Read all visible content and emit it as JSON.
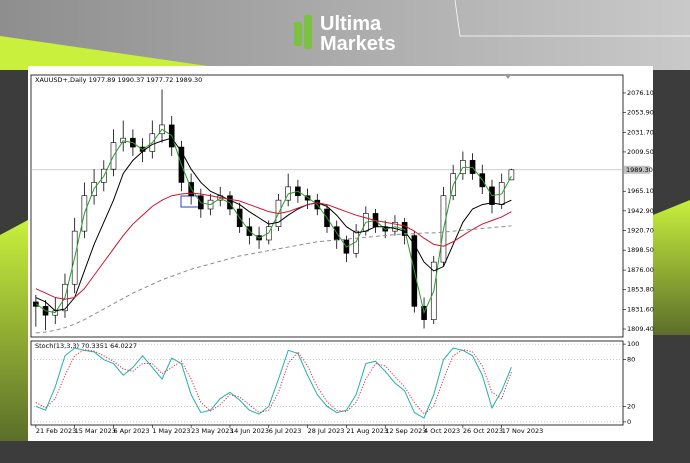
{
  "header": {
    "brand_line1": "Ultima",
    "brand_line2": "Markets"
  },
  "chart_data": [
    {
      "type": "candlestick",
      "title": "XAUUSD+,Daily 1977.89 1990.37 1977.72 1989.30",
      "x": [
        0,
        4,
        8,
        12,
        16,
        20,
        24,
        28,
        32,
        36,
        40,
        44,
        48,
        52,
        56,
        60,
        64,
        68,
        72,
        76,
        80,
        84,
        88,
        92,
        96,
        100,
        104,
        108,
        112,
        116,
        120,
        124,
        128,
        132,
        136,
        140,
        144,
        148,
        152,
        156,
        160,
        164,
        168,
        172,
        176,
        180,
        184,
        188,
        192,
        196
      ],
      "open": [
        1840,
        1835,
        1825,
        1830,
        1860,
        1920,
        1960,
        1975,
        1990,
        2020,
        2025,
        2015,
        2010,
        2030,
        2040,
        2015,
        1975,
        1960,
        1945,
        1955,
        1960,
        1945,
        1925,
        1915,
        1910,
        1925,
        1955,
        1970,
        1960,
        1955,
        1945,
        1925,
        1910,
        1895,
        1920,
        1940,
        1925,
        1920,
        1930,
        1915,
        1835,
        1820,
        1885,
        1960,
        1985,
        2000,
        1985,
        1970,
        1950,
        1977.89
      ],
      "high": [
        1848,
        1842,
        1845,
        1872,
        1935,
        1975,
        1990,
        2000,
        2035,
        2045,
        2035,
        2025,
        2045,
        2080,
        2050,
        2022,
        1985,
        1968,
        1962,
        1970,
        1965,
        1952,
        1935,
        1925,
        1932,
        1962,
        1985,
        1978,
        1968,
        1962,
        1950,
        1932,
        1915,
        1928,
        1948,
        1945,
        1932,
        1938,
        1935,
        1920,
        1845,
        1892,
        1970,
        1995,
        2010,
        2008,
        1995,
        1978,
        1985,
        1990.37
      ],
      "low": [
        1812,
        1808,
        1815,
        1822,
        1850,
        1912,
        1950,
        1965,
        1982,
        2010,
        2005,
        1998,
        2002,
        2020,
        2005,
        1965,
        1950,
        1935,
        1938,
        1948,
        1938,
        1918,
        1905,
        1900,
        1905,
        1920,
        1948,
        1952,
        1945,
        1938,
        1918,
        1900,
        1885,
        1890,
        1915,
        1918,
        1912,
        1915,
        1905,
        1828,
        1810,
        1815,
        1880,
        1955,
        1978,
        1978,
        1962,
        1940,
        1945,
        1977.72
      ],
      "close": [
        1835,
        1825,
        1830,
        1860,
        1920,
        1960,
        1975,
        1990,
        2020,
        2025,
        2015,
        2010,
        2030,
        2040,
        2015,
        1975,
        1960,
        1945,
        1955,
        1960,
        1945,
        1925,
        1915,
        1910,
        1925,
        1955,
        1970,
        1960,
        1955,
        1945,
        1925,
        1910,
        1895,
        1920,
        1940,
        1925,
        1920,
        1930,
        1915,
        1835,
        1820,
        1885,
        1960,
        1985,
        2000,
        1985,
        1970,
        1950,
        1975,
        1989.3
      ],
      "up_color": "#ffffff",
      "down_color": "#000000",
      "series": [
        {
          "color": "#2e9a2e",
          "style": "solid",
          "values": [
            1838,
            1830,
            1828,
            1845,
            1890,
            1940,
            1968,
            1982,
            2005,
            2022,
            2020,
            2012,
            2020,
            2035,
            2028,
            1995,
            1968,
            1952,
            1950,
            1957,
            1952,
            1935,
            1920,
            1912,
            1918,
            1940,
            1962,
            1965,
            1958,
            1950,
            1935,
            1918,
            1902,
            1908,
            1930,
            1932,
            1922,
            1925,
            1922,
            1875,
            1828,
            1852,
            1922,
            1972,
            1992,
            1992,
            1978,
            1960,
            1962,
            1982
          ]
        },
        {
          "color": "#000000",
          "style": "solid",
          "values": [
            1845,
            1840,
            1830,
            1832,
            1845,
            1875,
            1905,
            1930,
            1955,
            1985,
            2000,
            2010,
            2018,
            2022,
            2025,
            2010,
            1990,
            1975,
            1965,
            1960,
            1955,
            1950,
            1942,
            1935,
            1928,
            1930,
            1938,
            1945,
            1950,
            1952,
            1948,
            1938,
            1925,
            1918,
            1920,
            1925,
            1925,
            1923,
            1920,
            1905,
            1885,
            1875,
            1880,
            1905,
            1930,
            1945,
            1950,
            1952,
            1950,
            1955
          ]
        },
        {
          "color": "#d0142c",
          "style": "solid",
          "values": [
            1855,
            1850,
            1845,
            1843,
            1845,
            1855,
            1870,
            1885,
            1900,
            1915,
            1928,
            1938,
            1948,
            1955,
            1960,
            1962,
            1963,
            1962,
            1960,
            1958,
            1956,
            1954,
            1950,
            1946,
            1942,
            1940,
            1942,
            1946,
            1950,
            1952,
            1950,
            1946,
            1942,
            1938,
            1935,
            1932,
            1930,
            1928,
            1926,
            1920,
            1912,
            1905,
            1903,
            1908,
            1915,
            1922,
            1928,
            1932,
            1936,
            1942
          ]
        },
        {
          "color": "#8c8c8c",
          "style": "dashed",
          "values": [
            1805,
            1806,
            1808,
            1811,
            1815,
            1820,
            1826,
            1832,
            1838,
            1844,
            1850,
            1855,
            1860,
            1865,
            1869,
            1873,
            1877,
            1880,
            1883,
            1886,
            1889,
            1892,
            1894,
            1896,
            1898,
            1900,
            1902,
            1904,
            1906,
            1908,
            1909,
            1910,
            1911,
            1912,
            1913,
            1914,
            1915,
            1916,
            1917,
            1917,
            1918,
            1918,
            1919,
            1920,
            1921,
            1922,
            1923,
            1924,
            1925,
            1926
          ]
        }
      ],
      "xlim": [
        -2,
        242
      ],
      "ylim": [
        1800.4,
        2096.4
      ],
      "yticks": [
        {
          "value": 2076.1,
          "label": "2076.10"
        },
        {
          "value": 2053.9,
          "label": "2053.90"
        },
        {
          "value": 2031.7,
          "label": "2031.70"
        },
        {
          "value": 2009.5,
          "label": "2009.50"
        },
        {
          "value": 1965.1,
          "label": "1965.10"
        },
        {
          "value": 1942.9,
          "label": "1942.90"
        },
        {
          "value": 1920.7,
          "label": "1920.70"
        },
        {
          "value": 1898.5,
          "label": "1898.50"
        },
        {
          "value": 1876,
          "label": "1876.00"
        },
        {
          "value": 1853.8,
          "label": "1853.80"
        },
        {
          "value": 1831.6,
          "label": "1831.60"
        },
        {
          "value": 1809.4,
          "label": "1809.40"
        }
      ],
      "last_price": {
        "value": 1989.3,
        "label": "1989.30"
      },
      "xticks": [
        {
          "value": 0,
          "label": "21 Feb 2023"
        },
        {
          "value": 16,
          "label": "15 Mar 2023"
        },
        {
          "value": 32,
          "label": "6 Apr 2023"
        },
        {
          "value": 48,
          "label": "1 May 2023"
        },
        {
          "value": 64,
          "label": "23 May 2023"
        },
        {
          "value": 80,
          "label": "14 Jun 2023"
        },
        {
          "value": 96,
          "label": "6 Jul 2023"
        },
        {
          "value": 112,
          "label": "28 Jul 2023"
        },
        {
          "value": 128,
          "label": "21 Aug 2023"
        },
        {
          "value": 144,
          "label": "12 Sep 2023"
        },
        {
          "value": 160,
          "label": "4 Oct 2023"
        },
        {
          "value": 176,
          "label": "26 Oct 2023"
        },
        {
          "value": 192,
          "label": "17 Nov 2023"
        }
      ]
    },
    {
      "type": "line",
      "title": "Stoch(13,3,3) 70.3351 64.0227",
      "x": [
        0,
        4,
        8,
        12,
        16,
        20,
        24,
        28,
        32,
        36,
        40,
        44,
        48,
        52,
        56,
        60,
        64,
        68,
        72,
        76,
        80,
        84,
        88,
        92,
        96,
        100,
        104,
        108,
        112,
        116,
        120,
        124,
        128,
        132,
        136,
        140,
        144,
        148,
        152,
        156,
        160,
        164,
        168,
        172,
        176,
        180,
        184,
        188,
        192,
        196
      ],
      "series": [
        {
          "color": "#20b2aa",
          "style": "solid",
          "values": [
            20,
            15,
            45,
            85,
            95,
            92,
            90,
            80,
            75,
            60,
            70,
            85,
            70,
            55,
            82,
            75,
            35,
            12,
            15,
            30,
            38,
            28,
            15,
            10,
            20,
            55,
            92,
            88,
            60,
            35,
            20,
            12,
            15,
            35,
            75,
            78,
            65,
            50,
            40,
            12,
            5,
            35,
            80,
            95,
            92,
            85,
            60,
            18,
            40,
            70.3351
          ]
        },
        {
          "color": "#e0303a",
          "style": "dotted",
          "values": [
            25,
            18,
            30,
            60,
            85,
            93,
            91,
            85,
            78,
            68,
            65,
            75,
            75,
            62,
            70,
            78,
            55,
            25,
            14,
            22,
            35,
            32,
            22,
            12,
            15,
            38,
            75,
            90,
            72,
            45,
            26,
            15,
            13,
            25,
            55,
            75,
            72,
            58,
            45,
            25,
            10,
            20,
            55,
            85,
            93,
            90,
            72,
            38,
            30,
            64.0227
          ]
        }
      ],
      "xlim": [
        -2,
        242
      ],
      "ylim": [
        -4,
        104
      ],
      "yticks": [
        100,
        80,
        20,
        0
      ],
      "grid": true
    }
  ]
}
